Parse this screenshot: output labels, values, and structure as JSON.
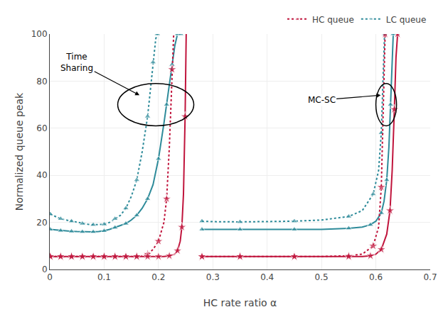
{
  "chart_data": {
    "type": "line",
    "xlabel": "HC rate ratio α",
    "ylabel": "Normalized queue peak",
    "xlim": [
      0,
      0.7
    ],
    "ylim": [
      0,
      100
    ],
    "xticks": [
      0,
      0.1,
      0.2,
      0.3,
      0.4,
      0.5,
      0.6,
      0.7
    ],
    "yticks": [
      0,
      20,
      40,
      60,
      80,
      100
    ],
    "grid": true,
    "legend": "upper right",
    "series": [
      {
        "name": "LC queue",
        "color": "#2e8b9a",
        "line_style": "dotted",
        "marker": "triangle",
        "x": [
          0.001,
          0.01,
          0.02,
          0.03,
          0.04,
          0.05,
          0.06,
          0.07,
          0.08,
          0.09,
          0.1,
          0.11,
          0.12,
          0.13,
          0.14,
          0.15,
          0.16,
          0.17,
          0.18,
          0.185,
          0.19,
          0.195,
          0.198
        ],
        "values": [
          23.5,
          22.5,
          21.5,
          21.0,
          20.5,
          20.0,
          19.5,
          19.2,
          19.0,
          19.0,
          19.2,
          20.0,
          21.5,
          23.0,
          26.0,
          31.0,
          38.0,
          50.0,
          65.0,
          76.0,
          88.0,
          98.0,
          100.0
        ]
      },
      {
        "name": "LC queue",
        "color": "#2e8b9a",
        "line_style": "solid",
        "marker": "triangle",
        "x": [
          0.001,
          0.01,
          0.02,
          0.03,
          0.04,
          0.05,
          0.06,
          0.07,
          0.08,
          0.09,
          0.1,
          0.11,
          0.12,
          0.13,
          0.14,
          0.15,
          0.16,
          0.17,
          0.18,
          0.19,
          0.2,
          0.21,
          0.215,
          0.22,
          0.225,
          0.23,
          0.235,
          0.238,
          0.241
        ],
        "values": [
          17.0,
          16.8,
          16.5,
          16.3,
          16.2,
          16.1,
          16.0,
          16.0,
          16.0,
          16.1,
          16.4,
          17.0,
          17.8,
          18.5,
          19.5,
          21.0,
          23.0,
          26.0,
          30.0,
          36.0,
          47.0,
          62.0,
          70.0,
          77.5,
          87.0,
          95.0,
          100.0,
          100.0,
          100.0
        ]
      },
      {
        "name": "HC queue",
        "color": "#c0143c",
        "line_style": "dotted",
        "marker": "star",
        "x": [
          0.001,
          0.01,
          0.02,
          0.03,
          0.04,
          0.05,
          0.06,
          0.07,
          0.08,
          0.09,
          0.1,
          0.11,
          0.12,
          0.13,
          0.14,
          0.15,
          0.16,
          0.17,
          0.18,
          0.19,
          0.2,
          0.21,
          0.215,
          0.22,
          0.225,
          0.228
        ],
        "values": [
          5.5,
          5.5,
          5.5,
          5.5,
          5.5,
          5.5,
          5.5,
          5.5,
          5.5,
          5.5,
          5.5,
          5.5,
          5.5,
          5.5,
          5.5,
          5.5,
          5.5,
          5.8,
          6.5,
          8.5,
          12.0,
          20.0,
          30.0,
          52.0,
          85.0,
          100.0
        ]
      },
      {
        "name": "HC queue",
        "color": "#c0143c",
        "line_style": "solid",
        "marker": "star",
        "x": [
          0.001,
          0.01,
          0.02,
          0.03,
          0.04,
          0.05,
          0.06,
          0.07,
          0.08,
          0.09,
          0.1,
          0.11,
          0.12,
          0.13,
          0.14,
          0.15,
          0.16,
          0.17,
          0.18,
          0.19,
          0.2,
          0.21,
          0.22,
          0.23,
          0.235,
          0.24,
          0.243,
          0.246,
          0.249,
          0.251
        ],
        "values": [
          5.5,
          5.5,
          5.5,
          5.5,
          5.5,
          5.5,
          5.5,
          5.5,
          5.5,
          5.5,
          5.5,
          5.5,
          5.5,
          5.5,
          5.5,
          5.5,
          5.5,
          5.5,
          5.5,
          5.5,
          5.5,
          5.5,
          5.8,
          6.5,
          8.0,
          12.0,
          18.0,
          32.0,
          65.0,
          100.0
        ]
      },
      {
        "name": "LC queue",
        "color": "#2e8b9a",
        "line_style": "dotted",
        "marker": "triangle",
        "x": [
          0.28,
          0.3,
          0.35,
          0.4,
          0.45,
          0.5,
          0.55,
          0.575,
          0.595,
          0.605,
          0.61,
          0.613,
          0.616
        ],
        "values": [
          20.5,
          20.3,
          20.2,
          20.3,
          20.5,
          21.0,
          22.5,
          25.0,
          32.0,
          42.0,
          58.0,
          80.0,
          100.0
        ]
      },
      {
        "name": "LC queue",
        "color": "#2e8b9a",
        "line_style": "solid",
        "marker": "triangle",
        "x": [
          0.28,
          0.3,
          0.35,
          0.4,
          0.45,
          0.5,
          0.55,
          0.575,
          0.59,
          0.6,
          0.61,
          0.615,
          0.62,
          0.624,
          0.627,
          0.63,
          0.632
        ],
        "values": [
          17.0,
          17.0,
          17.0,
          17.0,
          17.0,
          17.0,
          17.5,
          18.0,
          19.0,
          20.5,
          24.0,
          29.0,
          38.0,
          52.0,
          70.0,
          90.0,
          100.0
        ]
      },
      {
        "name": "HC queue",
        "color": "#c0143c",
        "line_style": "dotted",
        "marker": "star",
        "x": [
          0.28,
          0.3,
          0.35,
          0.4,
          0.45,
          0.5,
          0.55,
          0.575,
          0.595,
          0.605,
          0.61,
          0.614,
          0.617
        ],
        "values": [
          5.5,
          5.5,
          5.5,
          5.5,
          5.5,
          5.5,
          5.8,
          6.5,
          10.0,
          18.0,
          35.0,
          72.0,
          100.0
        ]
      },
      {
        "name": "HC queue",
        "color": "#c0143c",
        "line_style": "solid",
        "marker": "star",
        "x": [
          0.28,
          0.3,
          0.35,
          0.4,
          0.45,
          0.5,
          0.55,
          0.575,
          0.59,
          0.6,
          0.61,
          0.62,
          0.626,
          0.63,
          0.634,
          0.637,
          0.64
        ],
        "values": [
          5.5,
          5.5,
          5.5,
          5.5,
          5.5,
          5.5,
          5.5,
          5.5,
          5.8,
          6.5,
          8.5,
          15.0,
          25.0,
          42.0,
          68.0,
          90.0,
          100.0
        ]
      }
    ],
    "annotations": [
      {
        "text": "Time\nSharing"
      },
      {
        "text": "MC-SC"
      }
    ]
  }
}
